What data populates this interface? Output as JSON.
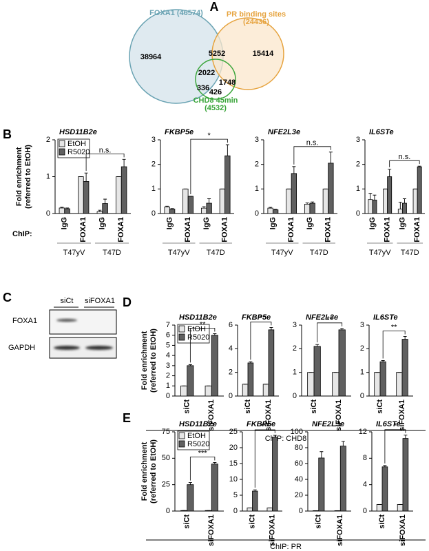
{
  "panel_labels": [
    "A",
    "B",
    "C",
    "D",
    "E"
  ],
  "captions": [
    "ChIP: CHD8",
    "ChIP: PR"
  ],
  "blot": {
    "lanes": [
      "siCt",
      "siFOXA1"
    ],
    "proteins": [
      "FOXA1",
      "GAPDH"
    ]
  },
  "chart_data": [
    {
      "type": "venn",
      "sets": [
        {
          "label_lines": [
            "FOXA1 (46574)"
          ],
          "color": "#6aa3b3",
          "fill": "#dfeaf0"
        },
        {
          "label_lines": [
            "PR binding sites",
            "(24436)"
          ],
          "color": "#e6a33e",
          "fill": "#fbe7cc"
        },
        {
          "label_lines": [
            "CHD8 45min",
            "(4532)"
          ],
          "color": "#3aa53a",
          "fill": "none"
        }
      ],
      "region_values": [
        38964,
        5252,
        15414,
        2022,
        1748,
        336,
        426
      ]
    },
    {
      "type": "bar",
      "title": "HSD11B2e",
      "ylabel_lines": [
        "Fold enrichment",
        "(referred to EtOH)"
      ],
      "categories": [
        "IgG",
        "FOXA1",
        "IgG",
        "FOXA1"
      ],
      "category_prefix": "ChIP:",
      "groups": [
        "T47yV",
        "T47D"
      ],
      "series": [
        {
          "name": "EtOH",
          "color": "#e6e6e6",
          "values": [
            0.15,
            1.0,
            0.05,
            1.0
          ],
          "error": [
            0.02,
            0,
            0.04,
            0
          ]
        },
        {
          "name": "R5020",
          "color": "#606060",
          "values": [
            0.13,
            0.87,
            0.27,
            1.27
          ],
          "error": [
            0.02,
            0.23,
            0.12,
            0.2
          ]
        }
      ],
      "ylim": [
        0,
        2
      ],
      "yticks": [
        0,
        1,
        2
      ],
      "legend": "upper left",
      "significance": "n.s."
    },
    {
      "type": "bar",
      "title": "FKBP5e",
      "categories": [
        "IgG",
        "FOXA1",
        "IgG",
        "FOXA1"
      ],
      "groups": [
        "T47yV",
        "T47D"
      ],
      "series": [
        {
          "color": "#e6e6e6",
          "values": [
            0.27,
            1.0,
            0.22,
            1.0
          ],
          "error": [
            0.03,
            0,
            0.06,
            0
          ]
        },
        {
          "color": "#606060",
          "values": [
            0.18,
            0.7,
            0.42,
            2.35
          ],
          "error": [
            0.02,
            0,
            0.18,
            0.45
          ]
        }
      ],
      "ylim": [
        0,
        3
      ],
      "yticks": [
        0,
        1,
        2,
        3
      ],
      "significance": "*"
    },
    {
      "type": "bar",
      "title": "NFE2L3e",
      "categories": [
        "IgG",
        "FOXA1",
        "IgG",
        "FOXA1"
      ],
      "groups": [
        "T47yV",
        "T47D"
      ],
      "series": [
        {
          "color": "#e6e6e6",
          "values": [
            0.22,
            1.0,
            0.38,
            1.0
          ],
          "error": [
            0.03,
            0,
            0.05,
            0
          ]
        },
        {
          "color": "#606060",
          "values": [
            0.15,
            1.63,
            0.42,
            2.05
          ],
          "error": [
            0.02,
            0.28,
            0.05,
            0.45
          ]
        }
      ],
      "ylim": [
        0,
        3
      ],
      "yticks": [
        0,
        1,
        2,
        3
      ],
      "significance": "n.s."
    },
    {
      "type": "bar",
      "title": "IL6STe",
      "categories": [
        "IgG",
        "FOXA1",
        "IgG",
        "FOXA1"
      ],
      "groups": [
        "T47yV",
        "T47D"
      ],
      "series": [
        {
          "color": "#e6e6e6",
          "values": [
            0.57,
            1.0,
            0.18,
            1.0
          ],
          "error": [
            0.25,
            0,
            0.28,
            0
          ]
        },
        {
          "color": "#606060",
          "values": [
            0.55,
            1.5,
            0.42,
            1.9
          ],
          "error": [
            0.2,
            0.3,
            0.18,
            0.03
          ]
        }
      ],
      "ylim": [
        0,
        3
      ],
      "yticks": [
        0,
        1,
        2,
        3
      ],
      "significance": "n.s."
    },
    {
      "type": "bar",
      "title": "HSD11B2e",
      "ylabel_lines": [
        "Fold enrichment",
        "(referred to EtOH)"
      ],
      "categories": [
        "siCt",
        "siFOXA1"
      ],
      "series": [
        {
          "name": "EtOH",
          "color": "#e6e6e6",
          "values": [
            1,
            1
          ],
          "error": [
            0,
            0
          ]
        },
        {
          "name": "R5020",
          "color": "#606060",
          "values": [
            3.0,
            6.0
          ],
          "error": [
            0.1,
            0.15
          ]
        }
      ],
      "ylim": [
        0,
        7
      ],
      "yticks": [
        0,
        1,
        2,
        3,
        4,
        5,
        6,
        7
      ],
      "legend": "upper left",
      "significance": "**"
    },
    {
      "type": "bar",
      "title": "FKBP5e",
      "categories": [
        "siCt",
        "siFOXA1"
      ],
      "series": [
        {
          "color": "#e6e6e6",
          "values": [
            1,
            1
          ],
          "error": [
            0,
            0
          ]
        },
        {
          "color": "#606060",
          "values": [
            2.8,
            5.6
          ],
          "error": [
            0.1,
            0.2
          ]
        }
      ],
      "ylim": [
        0,
        6
      ],
      "yticks": [
        0,
        2,
        4,
        6
      ],
      "significance": "*"
    },
    {
      "type": "bar",
      "title": "NFE2L3e",
      "categories": [
        "siCt",
        "siFOXA1"
      ],
      "series": [
        {
          "color": "#e6e6e6",
          "values": [
            1,
            1
          ],
          "error": [
            0,
            0
          ]
        },
        {
          "color": "#606060",
          "values": [
            2.1,
            2.8
          ],
          "error": [
            0.08,
            0.06
          ]
        }
      ],
      "ylim": [
        0,
        3
      ],
      "yticks": [
        0,
        1,
        2,
        3
      ],
      "significance": "**"
    },
    {
      "type": "bar",
      "title": "IL6STe",
      "categories": [
        "siCt",
        "siFOXA1"
      ],
      "series": [
        {
          "color": "#e6e6e6",
          "values": [
            1,
            1
          ],
          "error": [
            0,
            0
          ]
        },
        {
          "color": "#606060",
          "values": [
            1.45,
            2.4
          ],
          "error": [
            0.05,
            0.12
          ]
        }
      ],
      "ylim": [
        0,
        3
      ],
      "yticks": [
        0,
        1,
        2,
        3
      ],
      "significance": "**"
    },
    {
      "type": "bar",
      "title": "HSD11B2e",
      "ylabel_lines": [
        "Fold enrichment",
        "(referred to EtOH)"
      ],
      "categories": [
        "siCt",
        "siFOXA1"
      ],
      "series": [
        {
          "name": "EtOH",
          "color": "#e6e6e6",
          "values": [
            0.5,
            0.5
          ],
          "error": [
            0,
            0
          ]
        },
        {
          "name": "R5020",
          "color": "#606060",
          "values": [
            25,
            44.5
          ],
          "error": [
            2,
            1.5
          ]
        }
      ],
      "ylim": [
        0,
        75
      ],
      "yticks": [
        0,
        25,
        50,
        75
      ],
      "legend": "upper left",
      "significance": "***"
    },
    {
      "type": "bar",
      "title": "FKBP5e",
      "categories": [
        "siCt",
        "siFOXA1"
      ],
      "series": [
        {
          "color": "#e6e6e6",
          "values": [
            1,
            1
          ],
          "error": [
            0,
            0
          ]
        },
        {
          "color": "#606060",
          "values": [
            6.3,
            23.3
          ],
          "error": [
            0.4,
            0.6
          ]
        }
      ],
      "ylim": [
        0,
        25
      ],
      "yticks": [
        0,
        5,
        10,
        15,
        20,
        25
      ],
      "significance": "***"
    },
    {
      "type": "bar",
      "title": "NFE2L3e",
      "categories": [
        "siCt",
        "siFOXA1"
      ],
      "series": [
        {
          "color": "#e6e6e6",
          "values": [
            0.5,
            0.5
          ],
          "error": [
            0,
            0
          ]
        },
        {
          "color": "#606060",
          "values": [
            67,
            82
          ],
          "error": [
            8,
            6
          ]
        }
      ],
      "ylim": [
        0,
        100
      ],
      "yticks": [
        0,
        20,
        40,
        60,
        80,
        100
      ]
    },
    {
      "type": "bar",
      "title": "IL6STe",
      "categories": [
        "siCt",
        "siFOXA1"
      ],
      "series": [
        {
          "color": "#e6e6e6",
          "values": [
            1,
            1
          ],
          "error": [
            0,
            0
          ]
        },
        {
          "color": "#606060",
          "values": [
            6.7,
            11
          ],
          "error": [
            0.2,
            0.5
          ]
        }
      ],
      "ylim": [
        0,
        12
      ],
      "yticks": [
        0,
        4,
        8,
        12
      ],
      "significance": "*"
    }
  ]
}
